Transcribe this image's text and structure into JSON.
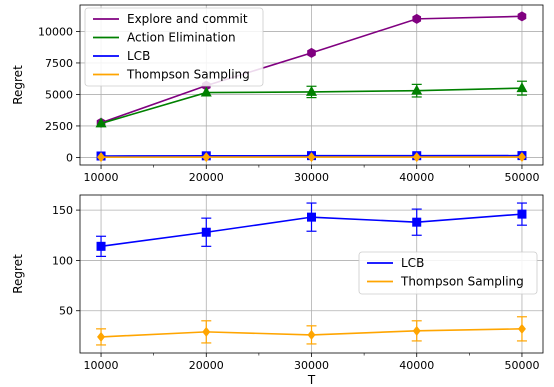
{
  "chart_data": [
    {
      "type": "line",
      "xlabel": "",
      "ylabel": "Regret",
      "x": [
        10000,
        20000,
        30000,
        40000,
        50000
      ],
      "xticks": [
        "10000",
        "20000",
        "30000",
        "40000",
        "50000"
      ],
      "yticks": [
        0,
        2500,
        5000,
        7500,
        10000
      ],
      "ytick_labels": [
        "0",
        "2500",
        "5000",
        "7500",
        "10000"
      ],
      "xlim": [
        8000,
        52000
      ],
      "ylim": [
        -600,
        12100
      ],
      "grid": true,
      "legend_position": "top-left",
      "series": [
        {
          "name": "Explore and commit",
          "color": "#800080",
          "marker": "hexagon",
          "values": [
            2750,
            5700,
            8300,
            11000,
            11200
          ],
          "errors": [
            0,
            0,
            0,
            0,
            0
          ]
        },
        {
          "name": "Action Elimination",
          "color": "#008000",
          "marker": "triangle",
          "values": [
            2700,
            5150,
            5200,
            5300,
            5500
          ],
          "errors": [
            0,
            0,
            450,
            500,
            550
          ]
        },
        {
          "name": "LCB",
          "color": "#0000ff",
          "marker": "square",
          "values": [
            114,
            128,
            143,
            138,
            146
          ],
          "errors": [
            0,
            0,
            0,
            0,
            0
          ]
        },
        {
          "name": "Thompson Sampling",
          "color": "#ffa500",
          "marker": "diamond",
          "values": [
            24,
            29,
            26,
            30,
            32
          ],
          "errors": [
            0,
            0,
            0,
            0,
            0
          ]
        }
      ]
    },
    {
      "type": "line",
      "xlabel": "T",
      "ylabel": "Regret",
      "x": [
        10000,
        20000,
        30000,
        40000,
        50000
      ],
      "xticks": [
        "10000",
        "20000",
        "30000",
        "40000",
        "50000"
      ],
      "yticks": [
        50,
        100,
        150
      ],
      "ytick_labels": [
        "50",
        "100",
        "150"
      ],
      "xlim": [
        8000,
        52000
      ],
      "ylim": [
        8,
        165
      ],
      "grid": true,
      "legend_position": "center-right",
      "series": [
        {
          "name": "LCB",
          "color": "#0000ff",
          "marker": "square",
          "values": [
            114,
            128,
            143,
            138,
            146
          ],
          "errors": [
            10,
            14,
            14,
            13,
            11
          ]
        },
        {
          "name": "Thompson Sampling",
          "color": "#ffa500",
          "marker": "diamond",
          "values": [
            24,
            29,
            26,
            30,
            32
          ],
          "errors": [
            8,
            11,
            9,
            10,
            12
          ]
        }
      ]
    }
  ]
}
